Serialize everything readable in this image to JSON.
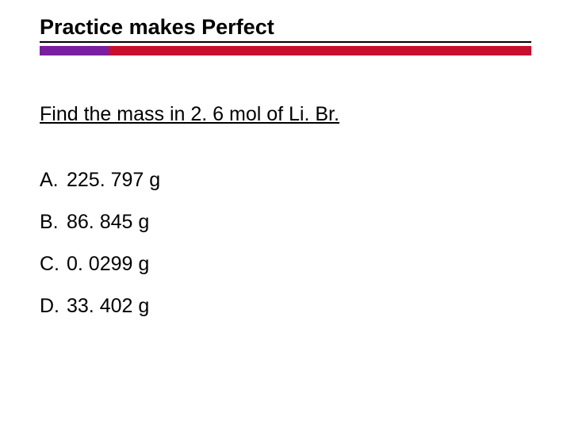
{
  "title": "Practice makes Perfect",
  "bar": {
    "left_color": "#7a1fa0",
    "right_color": "#c8102e",
    "left_width_pct": 14
  },
  "question": "Find the mass in 2. 6 mol of Li. Br.",
  "options": [
    {
      "label": "A.",
      "text": "225. 797 g"
    },
    {
      "label": "B.",
      "text": "86. 845 g"
    },
    {
      "label": "C.",
      "text": "0. 0299 g"
    },
    {
      "label": "D.",
      "text": "33. 402 g"
    }
  ],
  "text_color": "#000000",
  "background_color": "#ffffff"
}
